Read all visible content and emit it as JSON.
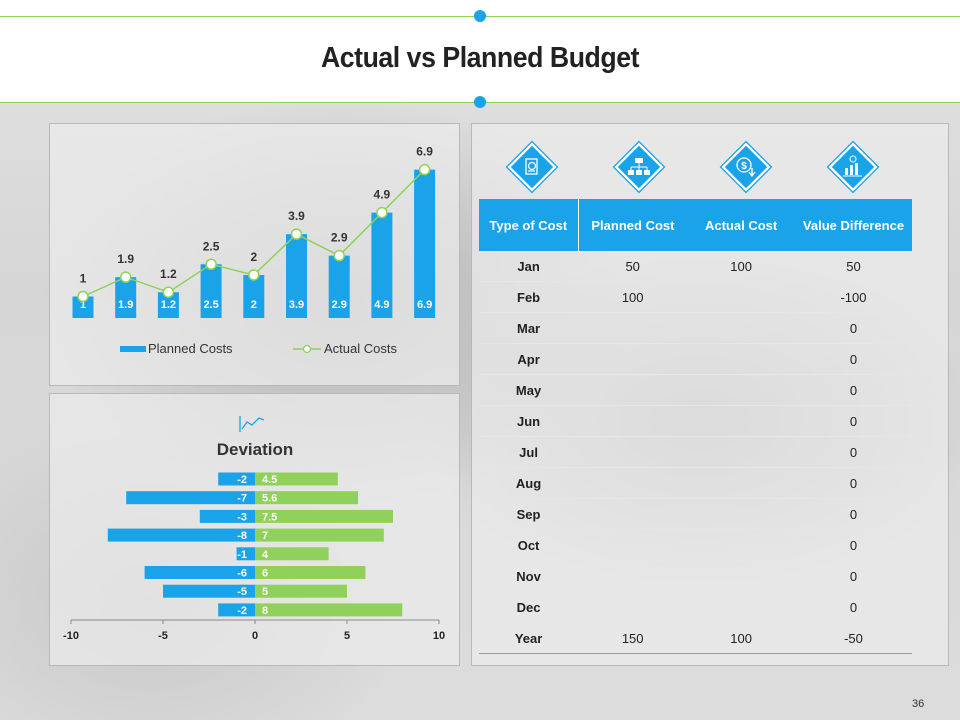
{
  "title": "Actual vs Planned Budget",
  "page_number": "36",
  "colors": {
    "accent_blue": "#1aa3e8",
    "accent_green": "#8fd15a"
  },
  "icons": [
    "budget-document-icon",
    "flowchart-icon",
    "dollar-down-icon",
    "value-chart-icon"
  ],
  "chart_data": [
    {
      "type": "bar",
      "title": "",
      "categories": [
        "",
        "",
        "",
        "",
        "",
        "",
        "",
        "",
        ""
      ],
      "series": [
        {
          "name": "Planned Costs",
          "type": "bar",
          "values": [
            1,
            1.9,
            1.2,
            2.5,
            2,
            3.9,
            2.9,
            4.9,
            6.9
          ]
        },
        {
          "name": "Actual Costs",
          "type": "line",
          "values": [
            1,
            1.9,
            1.2,
            2.5,
            2,
            3.9,
            2.9,
            4.9,
            6.9
          ]
        }
      ],
      "ylim": [
        0,
        8
      ],
      "legend": [
        "Planned Costs",
        "Actual Costs"
      ]
    },
    {
      "type": "bar",
      "orientation": "horizontal",
      "title": "Deviation",
      "series": [
        {
          "name": "Negative",
          "values": [
            -2,
            -7,
            -3,
            -8,
            -1,
            -6,
            -5,
            -2
          ]
        },
        {
          "name": "Positive",
          "values": [
            4.5,
            5.6,
            7.5,
            7,
            4,
            6,
            5,
            8
          ]
        }
      ],
      "xlim": [
        -10,
        10
      ],
      "xticks": [
        "-10",
        "-5",
        "0",
        "5",
        "10"
      ]
    }
  ],
  "table": {
    "headers": [
      "Type of Cost",
      "Planned Cost",
      "Actual Cost",
      "Value Difference"
    ],
    "rows": [
      {
        "month": "Jan",
        "planned": "50",
        "actual": "100",
        "diff": "50"
      },
      {
        "month": "Feb",
        "planned": "100",
        "actual": "",
        "diff": "-100"
      },
      {
        "month": "Mar",
        "planned": "",
        "actual": "",
        "diff": "0"
      },
      {
        "month": "Apr",
        "planned": "",
        "actual": "",
        "diff": "0"
      },
      {
        "month": "May",
        "planned": "",
        "actual": "",
        "diff": "0"
      },
      {
        "month": "Jun",
        "planned": "",
        "actual": "",
        "diff": "0"
      },
      {
        "month": "Jul",
        "planned": "",
        "actual": "",
        "diff": "0"
      },
      {
        "month": "Aug",
        "planned": "",
        "actual": "",
        "diff": "0"
      },
      {
        "month": "Sep",
        "planned": "",
        "actual": "",
        "diff": "0"
      },
      {
        "month": "Oct",
        "planned": "",
        "actual": "",
        "diff": "0"
      },
      {
        "month": "Nov",
        "planned": "",
        "actual": "",
        "diff": "0"
      },
      {
        "month": "Dec",
        "planned": "",
        "actual": "",
        "diff": "0"
      },
      {
        "month": "Year",
        "planned": "150",
        "actual": "100",
        "diff": "-50"
      }
    ]
  }
}
